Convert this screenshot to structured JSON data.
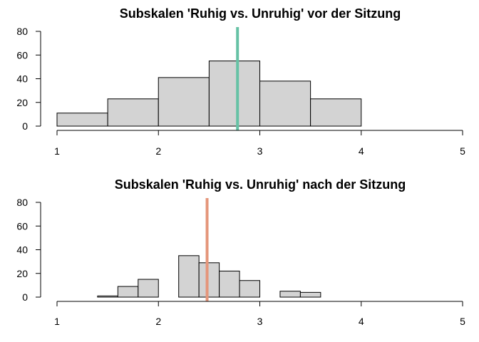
{
  "chart_data": [
    {
      "type": "bar",
      "subtype": "histogram",
      "title": "Subskalen 'Ruhig vs. Unruhig' vor der Sitzung",
      "xlabel": "",
      "ylabel": "",
      "xlim": [
        1,
        5
      ],
      "ylim": [
        0,
        80
      ],
      "x_ticks": [
        "1",
        "2",
        "3",
        "4",
        "5"
      ],
      "y_ticks": [
        "0",
        "20",
        "40",
        "60",
        "80"
      ],
      "bin_edges": [
        1,
        1.5,
        2,
        2.5,
        3,
        3.5,
        4
      ],
      "values": [
        11,
        23,
        41,
        55,
        38,
        23
      ],
      "bar_color": "#d3d3d3",
      "mean_line": {
        "x": 2.78,
        "color": "#66c2a5"
      },
      "grid": false
    },
    {
      "type": "bar",
      "subtype": "histogram",
      "title": "Subskalen 'Ruhig vs. Unruhig' nach der Sitzung",
      "xlabel": "",
      "ylabel": "",
      "xlim": [
        1,
        5
      ],
      "ylim": [
        0,
        80
      ],
      "x_ticks": [
        "1",
        "2",
        "3",
        "4",
        "5"
      ],
      "y_ticks": [
        "0",
        "20",
        "40",
        "60",
        "80"
      ],
      "bin_edges": [
        1.4,
        1.6,
        1.8,
        2.0,
        2.2,
        2.4,
        2.6,
        2.8,
        3.0,
        3.2,
        3.4,
        3.6
      ],
      "values": [
        1,
        9,
        15,
        0,
        35,
        29,
        22,
        14,
        0,
        5,
        4
      ],
      "bar_color": "#d3d3d3",
      "mean_line": {
        "x": 2.48,
        "color": "#e5967b"
      },
      "grid": false
    }
  ]
}
